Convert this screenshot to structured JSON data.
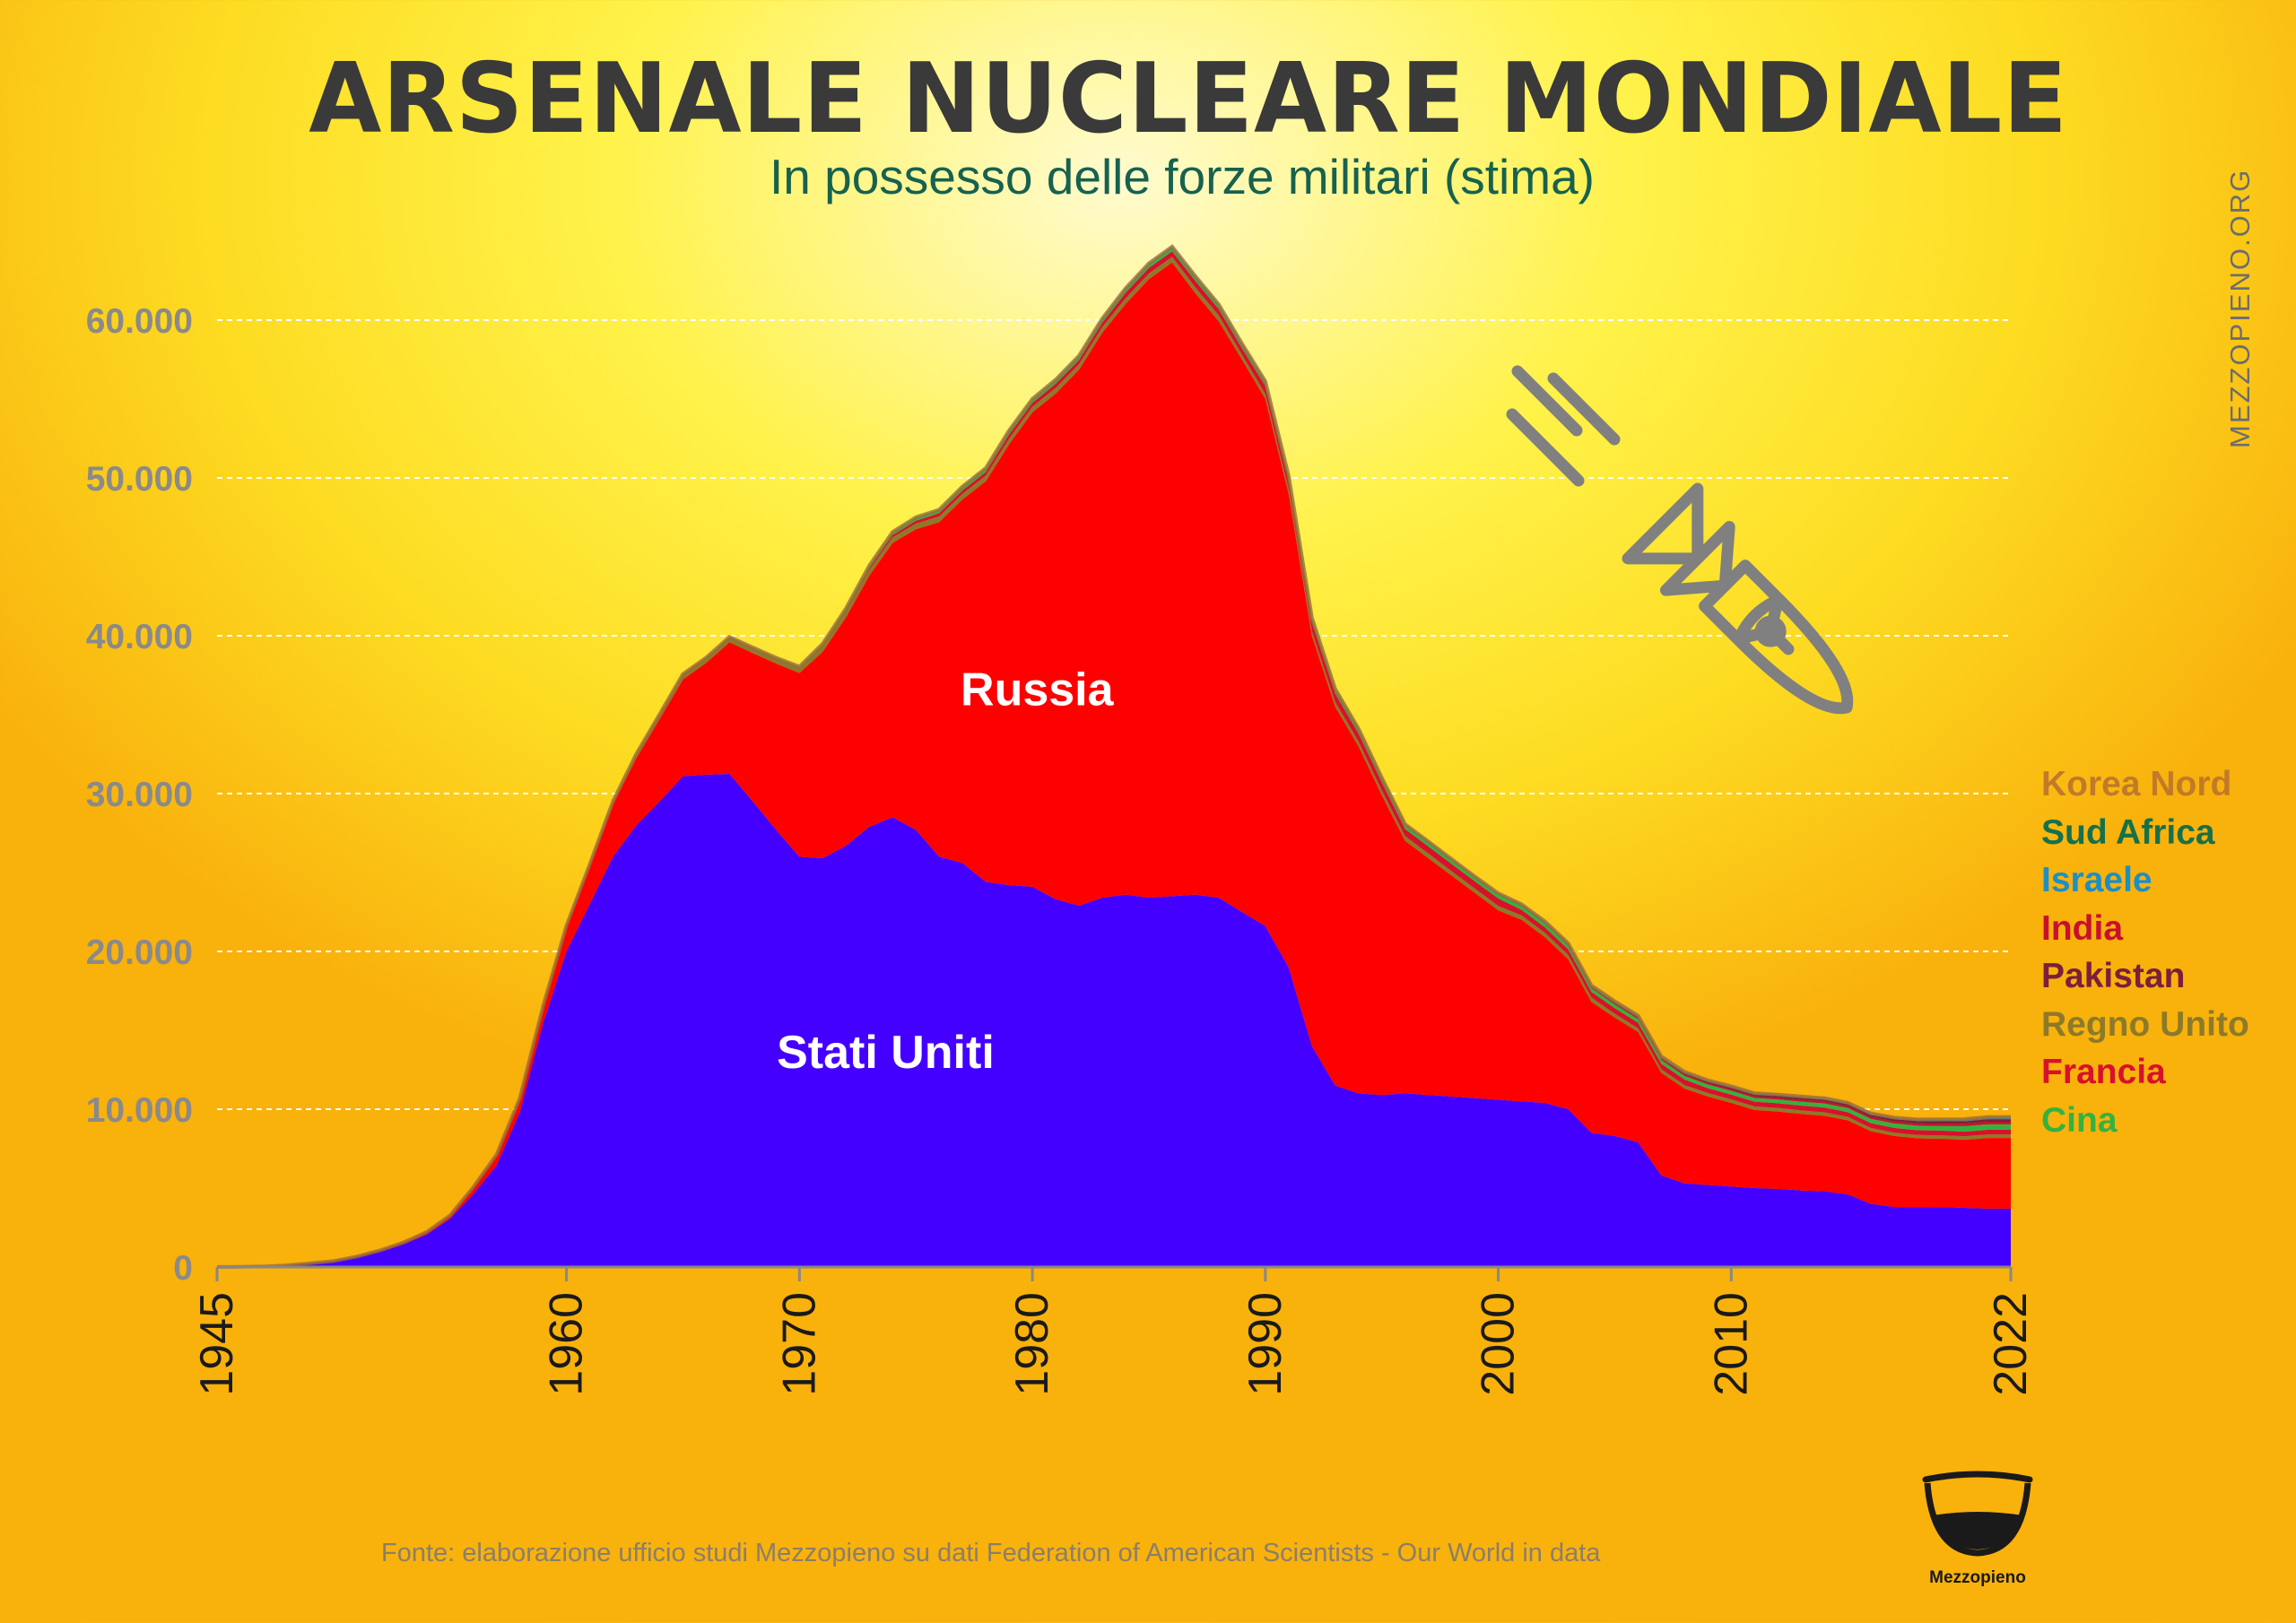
{
  "chart_data": {
    "type": "area",
    "stacked": true,
    "title": "ARSENALE NUCLEARE MONDIALE",
    "subtitle": "In possesso delle forze militari (stima)",
    "xlabel": "",
    "ylabel": "",
    "xlim": [
      1945,
      2022
    ],
    "ylim": [
      0,
      65000
    ],
    "yticks": [
      {
        "v": 0,
        "label": "0"
      },
      {
        "v": 10000,
        "label": "10.000"
      },
      {
        "v": 20000,
        "label": "20.000"
      },
      {
        "v": 30000,
        "label": "30.000"
      },
      {
        "v": 40000,
        "label": "40.000"
      },
      {
        "v": 50000,
        "label": "50.000"
      },
      {
        "v": 60000,
        "label": "60.000"
      }
    ],
    "xticks": [
      {
        "v": 1945,
        "label": "1945"
      },
      {
        "v": 1960,
        "label": "1960"
      },
      {
        "v": 1970,
        "label": "1970"
      },
      {
        "v": 1980,
        "label": "1980"
      },
      {
        "v": 1990,
        "label": "1990"
      },
      {
        "v": 2000,
        "label": "2000"
      },
      {
        "v": 2010,
        "label": "2010"
      },
      {
        "v": 2022,
        "label": "2022"
      }
    ],
    "grid": true,
    "x": [
      1945,
      1946,
      1947,
      1948,
      1949,
      1950,
      1951,
      1952,
      1953,
      1954,
      1955,
      1956,
      1957,
      1958,
      1959,
      1960,
      1961,
      1962,
      1963,
      1964,
      1965,
      1966,
      1967,
      1968,
      1969,
      1970,
      1971,
      1972,
      1973,
      1974,
      1975,
      1976,
      1977,
      1978,
      1979,
      1980,
      1981,
      1982,
      1983,
      1984,
      1985,
      1986,
      1987,
      1988,
      1989,
      1990,
      1991,
      1992,
      1993,
      1994,
      1995,
      1996,
      1997,
      1998,
      1999,
      2000,
      2001,
      2002,
      2003,
      2004,
      2005,
      2006,
      2007,
      2008,
      2009,
      2010,
      2011,
      2012,
      2013,
      2014,
      2015,
      2016,
      2017,
      2018,
      2019,
      2020,
      2021,
      2022
    ],
    "series": [
      {
        "name": "Stati Uniti",
        "color": "#4400ff",
        "values": [
          6,
          11,
          32,
          110,
          235,
          369,
          640,
          1005,
          1436,
          2063,
          3057,
          4618,
          6444,
          9822,
          15468,
          20000,
          23000,
          26000,
          28000,
          29500,
          31100,
          31200,
          31250,
          29500,
          27700,
          26000,
          25900,
          26700,
          27900,
          28500,
          27700,
          26000,
          25600,
          24400,
          24200,
          24100,
          23300,
          22900,
          23400,
          23600,
          23400,
          23500,
          23600,
          23400,
          22500,
          21600,
          19000,
          14000,
          11500,
          11000,
          10900,
          11000,
          10900,
          10800,
          10700,
          10600,
          10500,
          10400,
          10000,
          8500,
          8300,
          7900,
          5800,
          5300,
          5200,
          5100,
          5000,
          4950,
          4850,
          4800,
          4600,
          4000,
          3800,
          3800,
          3800,
          3750,
          3700,
          3700
        ]
      },
      {
        "name": "Russia",
        "color": "#ff0000",
        "values": [
          0,
          0,
          0,
          0,
          1,
          5,
          25,
          50,
          120,
          150,
          200,
          426,
          660,
          869,
          1060,
          1605,
          2471,
          3322,
          4238,
          5221,
          6129,
          7089,
          8339,
          9399,
          10538,
          11643,
          13092,
          14478,
          15915,
          17385,
          19055,
          21205,
          23044,
          25393,
          27935,
          30062,
          32049,
          33952,
          35804,
          37431,
          39197,
          40159,
          38107,
          36538,
          35000,
          33417,
          30000,
          26000,
          24000,
          22000,
          19000,
          16000,
          15000,
          14000,
          13000,
          12000,
          11500,
          10500,
          9500,
          8300,
          7500,
          7000,
          6500,
          6000,
          5600,
          5300,
          4950,
          4900,
          4850,
          4780,
          4700,
          4600,
          4500,
          4350,
          4330,
          4310,
          4477,
          4477
        ]
      },
      {
        "name": "Regno Unito",
        "color": "#8c7a2a",
        "values": [
          0,
          0,
          0,
          0,
          0,
          0,
          0,
          0,
          1,
          5,
          10,
          15,
          20,
          22,
          25,
          30,
          50,
          205,
          280,
          310,
          310,
          280,
          280,
          280,
          280,
          280,
          350,
          350,
          350,
          350,
          350,
          350,
          350,
          350,
          350,
          350,
          350,
          350,
          350,
          350,
          350,
          350,
          350,
          350,
          300,
          300,
          300,
          300,
          300,
          300,
          300,
          300,
          300,
          280,
          280,
          280,
          280,
          280,
          280,
          280,
          250,
          225,
          225,
          225,
          225,
          225,
          225,
          225,
          225,
          225,
          215,
          215,
          215,
          215,
          215,
          225,
          225,
          225
        ]
      },
      {
        "name": "Francia",
        "color": "#d8102c",
        "values": [
          0,
          0,
          0,
          0,
          0,
          0,
          0,
          0,
          0,
          0,
          0,
          0,
          0,
          0,
          0,
          0,
          0,
          0,
          0,
          4,
          32,
          36,
          36,
          36,
          36,
          36,
          45,
          70,
          116,
          145,
          188,
          212,
          228,
          235,
          274,
          250,
          274,
          279,
          280,
          359,
          360,
          355,
          420,
          411,
          412,
          505,
          538,
          540,
          525,
          510,
          500,
          450,
          450,
          450,
          450,
          470,
          350,
          350,
          350,
          350,
          350,
          350,
          350,
          350,
          300,
          300,
          300,
          300,
          300,
          300,
          300,
          300,
          300,
          300,
          300,
          290,
          290,
          290
        ]
      },
      {
        "name": "Cina",
        "color": "#34b240",
        "values": [
          0,
          0,
          0,
          0,
          0,
          0,
          0,
          0,
          0,
          0,
          0,
          0,
          0,
          0,
          0,
          0,
          0,
          0,
          0,
          0,
          5,
          20,
          25,
          35,
          50,
          75,
          100,
          130,
          150,
          170,
          185,
          190,
          200,
          205,
          210,
          205,
          210,
          215,
          220,
          225,
          230,
          235,
          240,
          235,
          232,
          232,
          234,
          234,
          234,
          232,
          234,
          234,
          234,
          234,
          232,
          232,
          232,
          235,
          227,
          227,
          235,
          235,
          235,
          235,
          240,
          240,
          240,
          240,
          250,
          260,
          260,
          270,
          280,
          290,
          290,
          350,
          350,
          350
        ]
      },
      {
        "name": "India",
        "color": "#c8102e",
        "values": [
          0,
          0,
          0,
          0,
          0,
          0,
          0,
          0,
          0,
          0,
          0,
          0,
          0,
          0,
          0,
          0,
          0,
          0,
          0,
          0,
          0,
          0,
          0,
          0,
          0,
          0,
          0,
          0,
          0,
          0,
          0,
          0,
          0,
          0,
          0,
          0,
          0,
          0,
          0,
          0,
          0,
          0,
          0,
          0,
          0,
          0,
          0,
          0,
          0,
          0,
          0,
          0,
          0,
          0,
          0,
          10,
          20,
          30,
          40,
          50,
          60,
          70,
          70,
          80,
          80,
          90,
          100,
          110,
          120,
          120,
          120,
          120,
          130,
          140,
          150,
          150,
          160,
          160
        ]
      },
      {
        "name": "Pakistan",
        "color": "#7b1f3c",
        "values": [
          0,
          0,
          0,
          0,
          0,
          0,
          0,
          0,
          0,
          0,
          0,
          0,
          0,
          0,
          0,
          0,
          0,
          0,
          0,
          0,
          0,
          0,
          0,
          0,
          0,
          0,
          0,
          0,
          0,
          0,
          0,
          0,
          0,
          0,
          0,
          0,
          0,
          0,
          0,
          0,
          0,
          0,
          0,
          0,
          0,
          0,
          0,
          0,
          0,
          0,
          0,
          0,
          0,
          0,
          0,
          10,
          20,
          30,
          40,
          50,
          60,
          70,
          80,
          90,
          100,
          110,
          110,
          110,
          120,
          120,
          120,
          130,
          140,
          150,
          150,
          160,
          165,
          165
        ]
      },
      {
        "name": "Israele",
        "color": "#1c8fc6",
        "values": [
          0,
          0,
          0,
          0,
          0,
          0,
          0,
          0,
          0,
          0,
          0,
          0,
          0,
          0,
          0,
          0,
          0,
          0,
          0,
          0,
          0,
          0,
          2,
          4,
          6,
          8,
          11,
          15,
          20,
          25,
          30,
          35,
          40,
          42,
          44,
          46,
          48,
          50,
          52,
          54,
          56,
          58,
          60,
          62,
          64,
          66,
          68,
          70,
          72,
          74,
          76,
          78,
          80,
          80,
          80,
          80,
          80,
          80,
          80,
          80,
          80,
          80,
          80,
          80,
          80,
          80,
          80,
          80,
          80,
          80,
          80,
          80,
          80,
          80,
          90,
          90,
          90,
          90
        ]
      },
      {
        "name": "Sud Africa",
        "color": "#16704a",
        "values": [
          0,
          0,
          0,
          0,
          0,
          0,
          0,
          0,
          0,
          0,
          0,
          0,
          0,
          0,
          0,
          0,
          0,
          0,
          0,
          0,
          0,
          0,
          0,
          0,
          0,
          0,
          0,
          0,
          0,
          0,
          0,
          0,
          0,
          0,
          0,
          0,
          0,
          1,
          2,
          3,
          4,
          5,
          6,
          6,
          6,
          6,
          3,
          0,
          0,
          0,
          0,
          0,
          0,
          0,
          0,
          0,
          0,
          0,
          0,
          0,
          0,
          0,
          0,
          0,
          0,
          0,
          0,
          0,
          0,
          0,
          0,
          0,
          0,
          0,
          0,
          0,
          0,
          0
        ]
      },
      {
        "name": "Korea Nord",
        "color": "#c07a2a",
        "values": [
          0,
          0,
          0,
          0,
          0,
          0,
          0,
          0,
          0,
          0,
          0,
          0,
          0,
          0,
          0,
          0,
          0,
          0,
          0,
          0,
          0,
          0,
          0,
          0,
          0,
          0,
          0,
          0,
          0,
          0,
          0,
          0,
          0,
          0,
          0,
          0,
          0,
          0,
          0,
          0,
          0,
          0,
          0,
          0,
          0,
          0,
          0,
          0,
          0,
          0,
          0,
          0,
          0,
          0,
          0,
          0,
          0,
          0,
          0,
          0,
          0,
          1,
          2,
          4,
          6,
          8,
          10,
          12,
          14,
          16,
          18,
          20,
          25,
          30,
          35,
          40,
          45,
          50
        ]
      }
    ],
    "annotations": [
      {
        "text": "Russia",
        "x": 1980.2,
        "y": 35600
      },
      {
        "text": "Stati Uniti",
        "x": 1973.7,
        "y": 12600
      }
    ],
    "legend_position": "right",
    "legend": [
      {
        "label": "Korea Nord",
        "color": "#c07a2a"
      },
      {
        "label": "Sud Africa",
        "color": "#16704a"
      },
      {
        "label": "Israele",
        "color": "#1c8fc6"
      },
      {
        "label": "India",
        "color": "#c8102e"
      },
      {
        "label": "Pakistan",
        "color": "#7b1f3c"
      },
      {
        "label": "Regno Unito",
        "color": "#8c7a2a"
      },
      {
        "label": "Francia",
        "color": "#d8102c"
      },
      {
        "label": "Cina",
        "color": "#34b240"
      }
    ]
  },
  "watermark": "MEZZOPIENO.ORG",
  "source": "Fonte: elaborazione ufficio studi Mezzopieno su dati Federation of American Scientists - Our World in data",
  "logo": {
    "name": "Mezzopieno"
  },
  "icons": {
    "bomb": "nuclear-bomb-icon",
    "logo": "half-full-glass-icon"
  },
  "colors": {
    "axis_text": "#8a8a8a",
    "tick_text": "#1a1a1a",
    "grid": "#ffffff",
    "title": "#3a3a3a",
    "subtitle": "#17614f",
    "icon": "#808080"
  }
}
